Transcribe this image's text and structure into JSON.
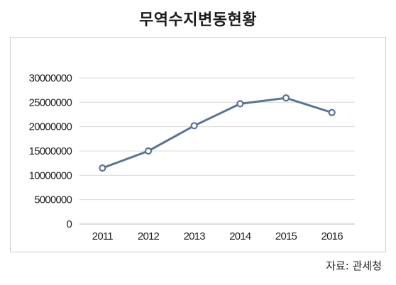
{
  "chart_data": {
    "type": "line",
    "title": "무역수지변동현황",
    "x": [
      "2011",
      "2012",
      "2013",
      "2014",
      "2015",
      "2016"
    ],
    "series": [
      {
        "values": [
          11500000,
          15000000,
          20200000,
          24700000,
          25900000,
          22900000
        ]
      }
    ],
    "ylim": [
      0,
      30000000
    ],
    "yticks": [
      "0",
      "5000000",
      "10000000",
      "15000000",
      "20000000",
      "25000000",
      "30000000"
    ],
    "grid": true,
    "legend": "none",
    "line_color": "#5a7495",
    "marker_fill": "#ffffff"
  },
  "source": "자료: 관세청"
}
